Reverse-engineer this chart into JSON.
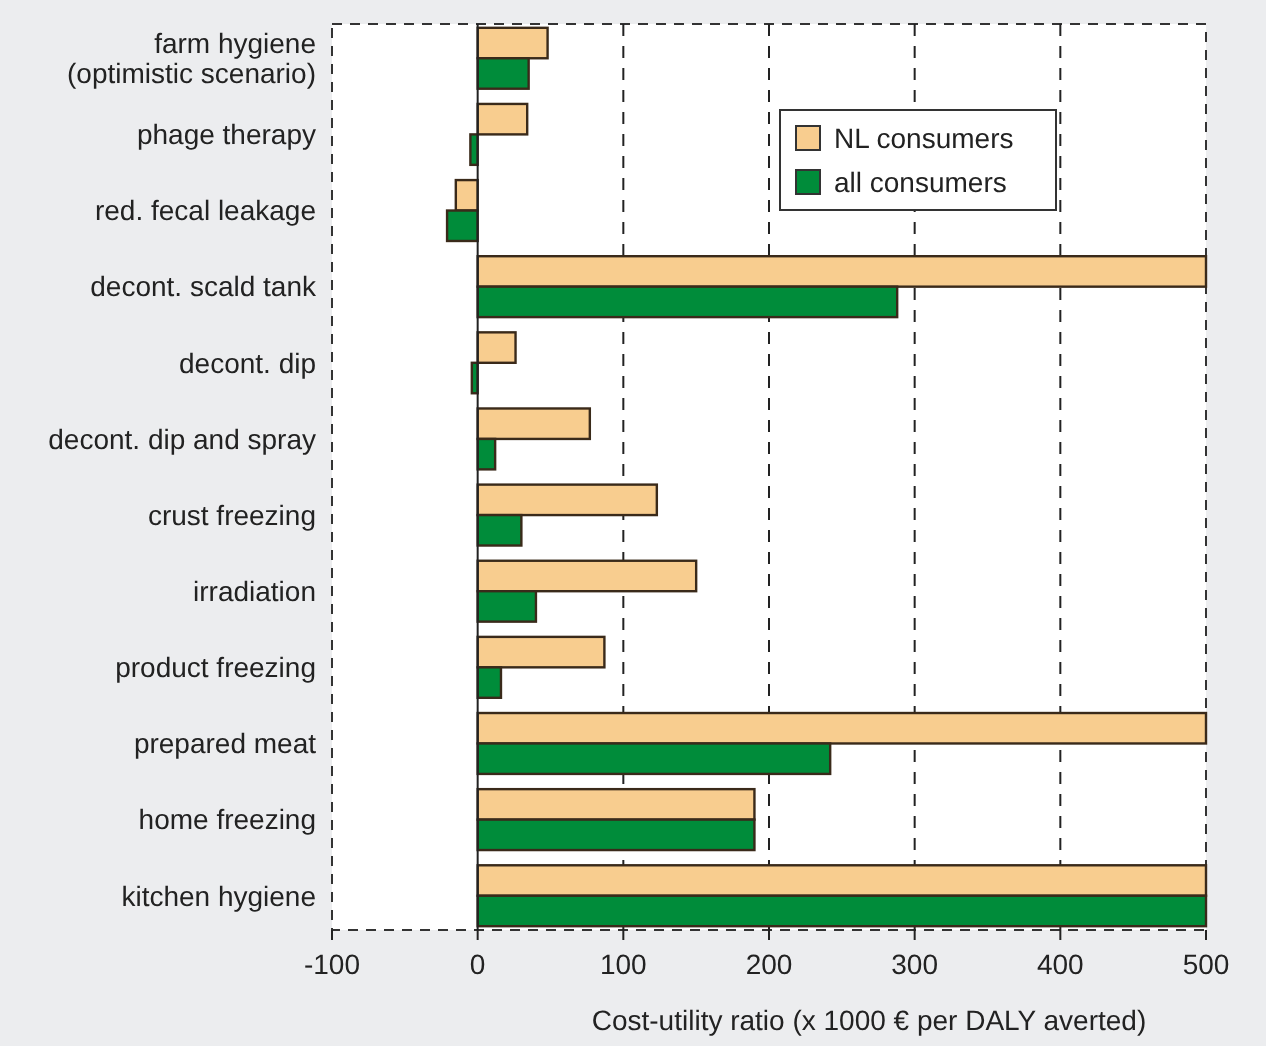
{
  "chart_data": {
    "type": "bar",
    "orientation": "horizontal",
    "xlabel": "Cost-utility ratio (x 1000 € per DALY averted)",
    "categories": [
      "farm hygiene\n(optimistic scenario)",
      "phage therapy",
      "red. fecal leakage",
      "decont. scald tank",
      "decont. dip",
      "decont. dip and spray",
      "crust freezing",
      "irradiation",
      "product freezing",
      "prepared meat",
      "home freezing",
      "kitchen hygiene"
    ],
    "series": [
      {
        "name": "NL consumers",
        "color": "#f8cd8f",
        "values": [
          48,
          34,
          -15,
          500,
          26,
          77,
          123,
          150,
          87,
          500,
          190,
          500
        ]
      },
      {
        "name": "all consumers",
        "color": "#008c3a",
        "values": [
          35,
          -5,
          -21,
          288,
          -4,
          12,
          30,
          40,
          16,
          242,
          190,
          500
        ]
      }
    ],
    "xlim": [
      -100,
      500
    ],
    "xticks": [
      -100,
      0,
      100,
      200,
      300,
      400,
      500
    ],
    "grid": "x",
    "legend": "top right"
  }
}
